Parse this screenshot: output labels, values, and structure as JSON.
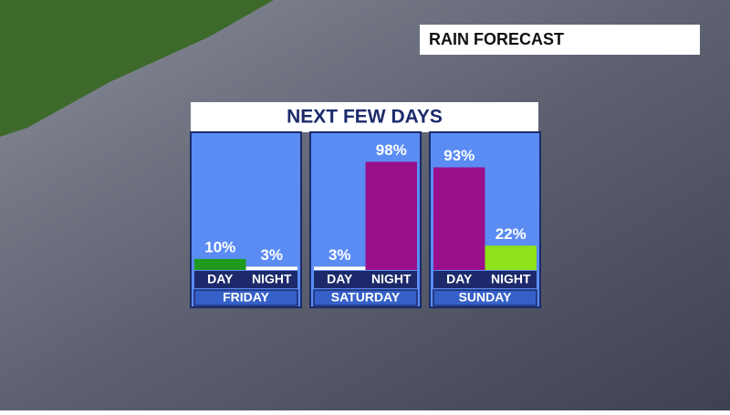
{
  "chart_data": {
    "type": "bar",
    "badge": "RAIN FORECAST",
    "title": "NEXT FEW DAYS",
    "ylim": [
      0,
      100
    ],
    "groups": [
      {
        "name": "FRIDAY",
        "categories": [
          "DAY",
          "NIGHT"
        ],
        "values": [
          10,
          3
        ],
        "value_labels": [
          "10%",
          "3%"
        ],
        "colors": [
          "#1f9a1f",
          "#ffffff"
        ]
      },
      {
        "name": "SATURDAY",
        "categories": [
          "DAY",
          "NIGHT"
        ],
        "values": [
          3,
          98
        ],
        "value_labels": [
          "3%",
          "98%"
        ],
        "colors": [
          "#ffffff",
          "#9a108c"
        ]
      },
      {
        "name": "SUNDAY",
        "categories": [
          "DAY",
          "NIGHT"
        ],
        "values": [
          93,
          22
        ],
        "value_labels": [
          "93%",
          "22%"
        ],
        "colors": [
          "#9a108c",
          "#8fe11a"
        ]
      }
    ]
  }
}
